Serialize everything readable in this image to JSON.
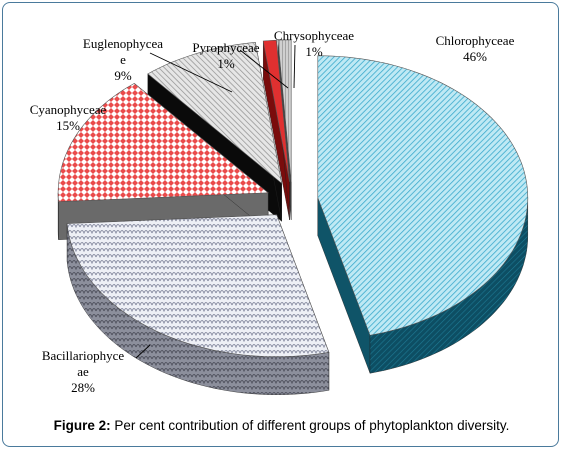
{
  "chart_data": {
    "type": "pie",
    "style": "3d-exploded",
    "slices": [
      {
        "name": "Chlorophyceae",
        "value": 46,
        "label": "46%",
        "color": "#7fd0e6",
        "side_color": "#0f5468"
      },
      {
        "name": "Bacillariophyceae",
        "value": 28,
        "label": "28%",
        "color": "#c8ccd8",
        "side_color": "#6f7180"
      },
      {
        "name": "Cyanophyceae",
        "value": 15,
        "label": "15%",
        "color": "#f08080",
        "side_color": "#6a6a6a"
      },
      {
        "name": "Euglenophyceae",
        "value": 9,
        "label": "9%",
        "color": "#c9c9c9",
        "side_color": "#0a0a0a"
      },
      {
        "name": "Pyrophyceae",
        "value": 1,
        "label": "1%",
        "color": "#e03030",
        "side_color": "#7a0c0c"
      },
      {
        "name": "Chrysophyceae",
        "value": 1,
        "label": "1%",
        "color": "#b8b8b8",
        "side_color": "#444444"
      }
    ],
    "label_lines": {
      "chloro": [
        "Chlorophyceae",
        "46%"
      ],
      "bacill": [
        "Bacillariophyce",
        "ae",
        "28%"
      ],
      "cyano": [
        "Cyanophyceae",
        "15%"
      ],
      "eugl": [
        "Euglenophycea",
        "e",
        "9%"
      ],
      "pyro": [
        "Pyrophyceae",
        "1%"
      ],
      "chryso": [
        "Chrysophyceae",
        "1%"
      ]
    }
  },
  "caption": {
    "label": "Figure 2:",
    "text": " Per cent contribution of different groups of phytoplankton diversity."
  }
}
